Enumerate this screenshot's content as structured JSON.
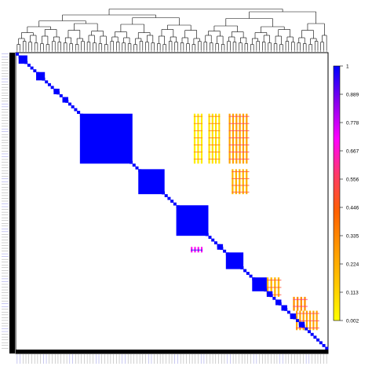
{
  "chart_data": {
    "type": "heatmap",
    "title": "",
    "xlabel": "",
    "ylabel": "",
    "diagonal_value": 1,
    "colorbar": {
      "ticks": [
        "1",
        "0.889",
        "0.778",
        "0.667",
        "0.556",
        "0.446",
        "0.335",
        "0.224",
        "0.113",
        "0.002"
      ],
      "colors": [
        "#0000ff",
        "#8a00ee",
        "#ff00ff",
        "#ff3a66",
        "#ff6000",
        "#ff9800",
        "#ffc800",
        "#ffff00"
      ],
      "range": [
        0.002,
        1
      ]
    },
    "diagonal_blocks": [
      {
        "start": 1,
        "size": 3,
        "value": 1
      },
      {
        "start": 7,
        "size": 3,
        "value": 1
      },
      {
        "start": 13,
        "size": 2,
        "value": 1
      },
      {
        "start": 16,
        "size": 2,
        "value": 1
      },
      {
        "start": 21,
        "size": 1,
        "value": 1
      },
      {
        "start": 22,
        "size": 18,
        "value": 1
      },
      {
        "start": 42,
        "size": 9,
        "value": 1
      },
      {
        "start": 55,
        "size": 11,
        "value": 1
      },
      {
        "start": 69,
        "size": 2,
        "value": 1
      },
      {
        "start": 72,
        "size": 6,
        "value": 1
      },
      {
        "start": 81,
        "size": 5,
        "value": 1
      },
      {
        "start": 86,
        "size": 2,
        "value": 1
      },
      {
        "start": 89,
        "size": 2,
        "value": 1
      },
      {
        "start": 91,
        "size": 2,
        "value": 1
      },
      {
        "start": 94,
        "size": 2,
        "value": 1
      },
      {
        "start": 97,
        "size": 2,
        "value": 1
      }
    ],
    "off_diagonal_regions": [
      {
        "rows": [
          22,
          40
        ],
        "cols": [
          66,
          70
        ],
        "value": 0.08
      },
      {
        "rows": [
          22,
          40
        ],
        "cols": [
          73,
          80
        ],
        "value": 0.25
      },
      {
        "rows": [
          22,
          40
        ],
        "cols": [
          61,
          64
        ],
        "value": 0.05
      },
      {
        "rows": [
          42,
          51
        ],
        "cols": [
          74,
          80
        ],
        "value": 0.2
      },
      {
        "rows": [
          88,
          93
        ],
        "cols": [
          95,
          100
        ],
        "value": 0.3
      },
      {
        "rows": [
          93,
          100
        ],
        "cols": [
          96,
          104
        ],
        "value": 0.25
      },
      {
        "rows": [
          81,
          88
        ],
        "cols": [
          86,
          91
        ],
        "value": 0.2
      },
      {
        "rows": [
          70,
          72
        ],
        "cols": [
          60,
          64
        ],
        "value": 0.7
      }
    ],
    "tree_levels": 4,
    "leaf_count": 107
  }
}
